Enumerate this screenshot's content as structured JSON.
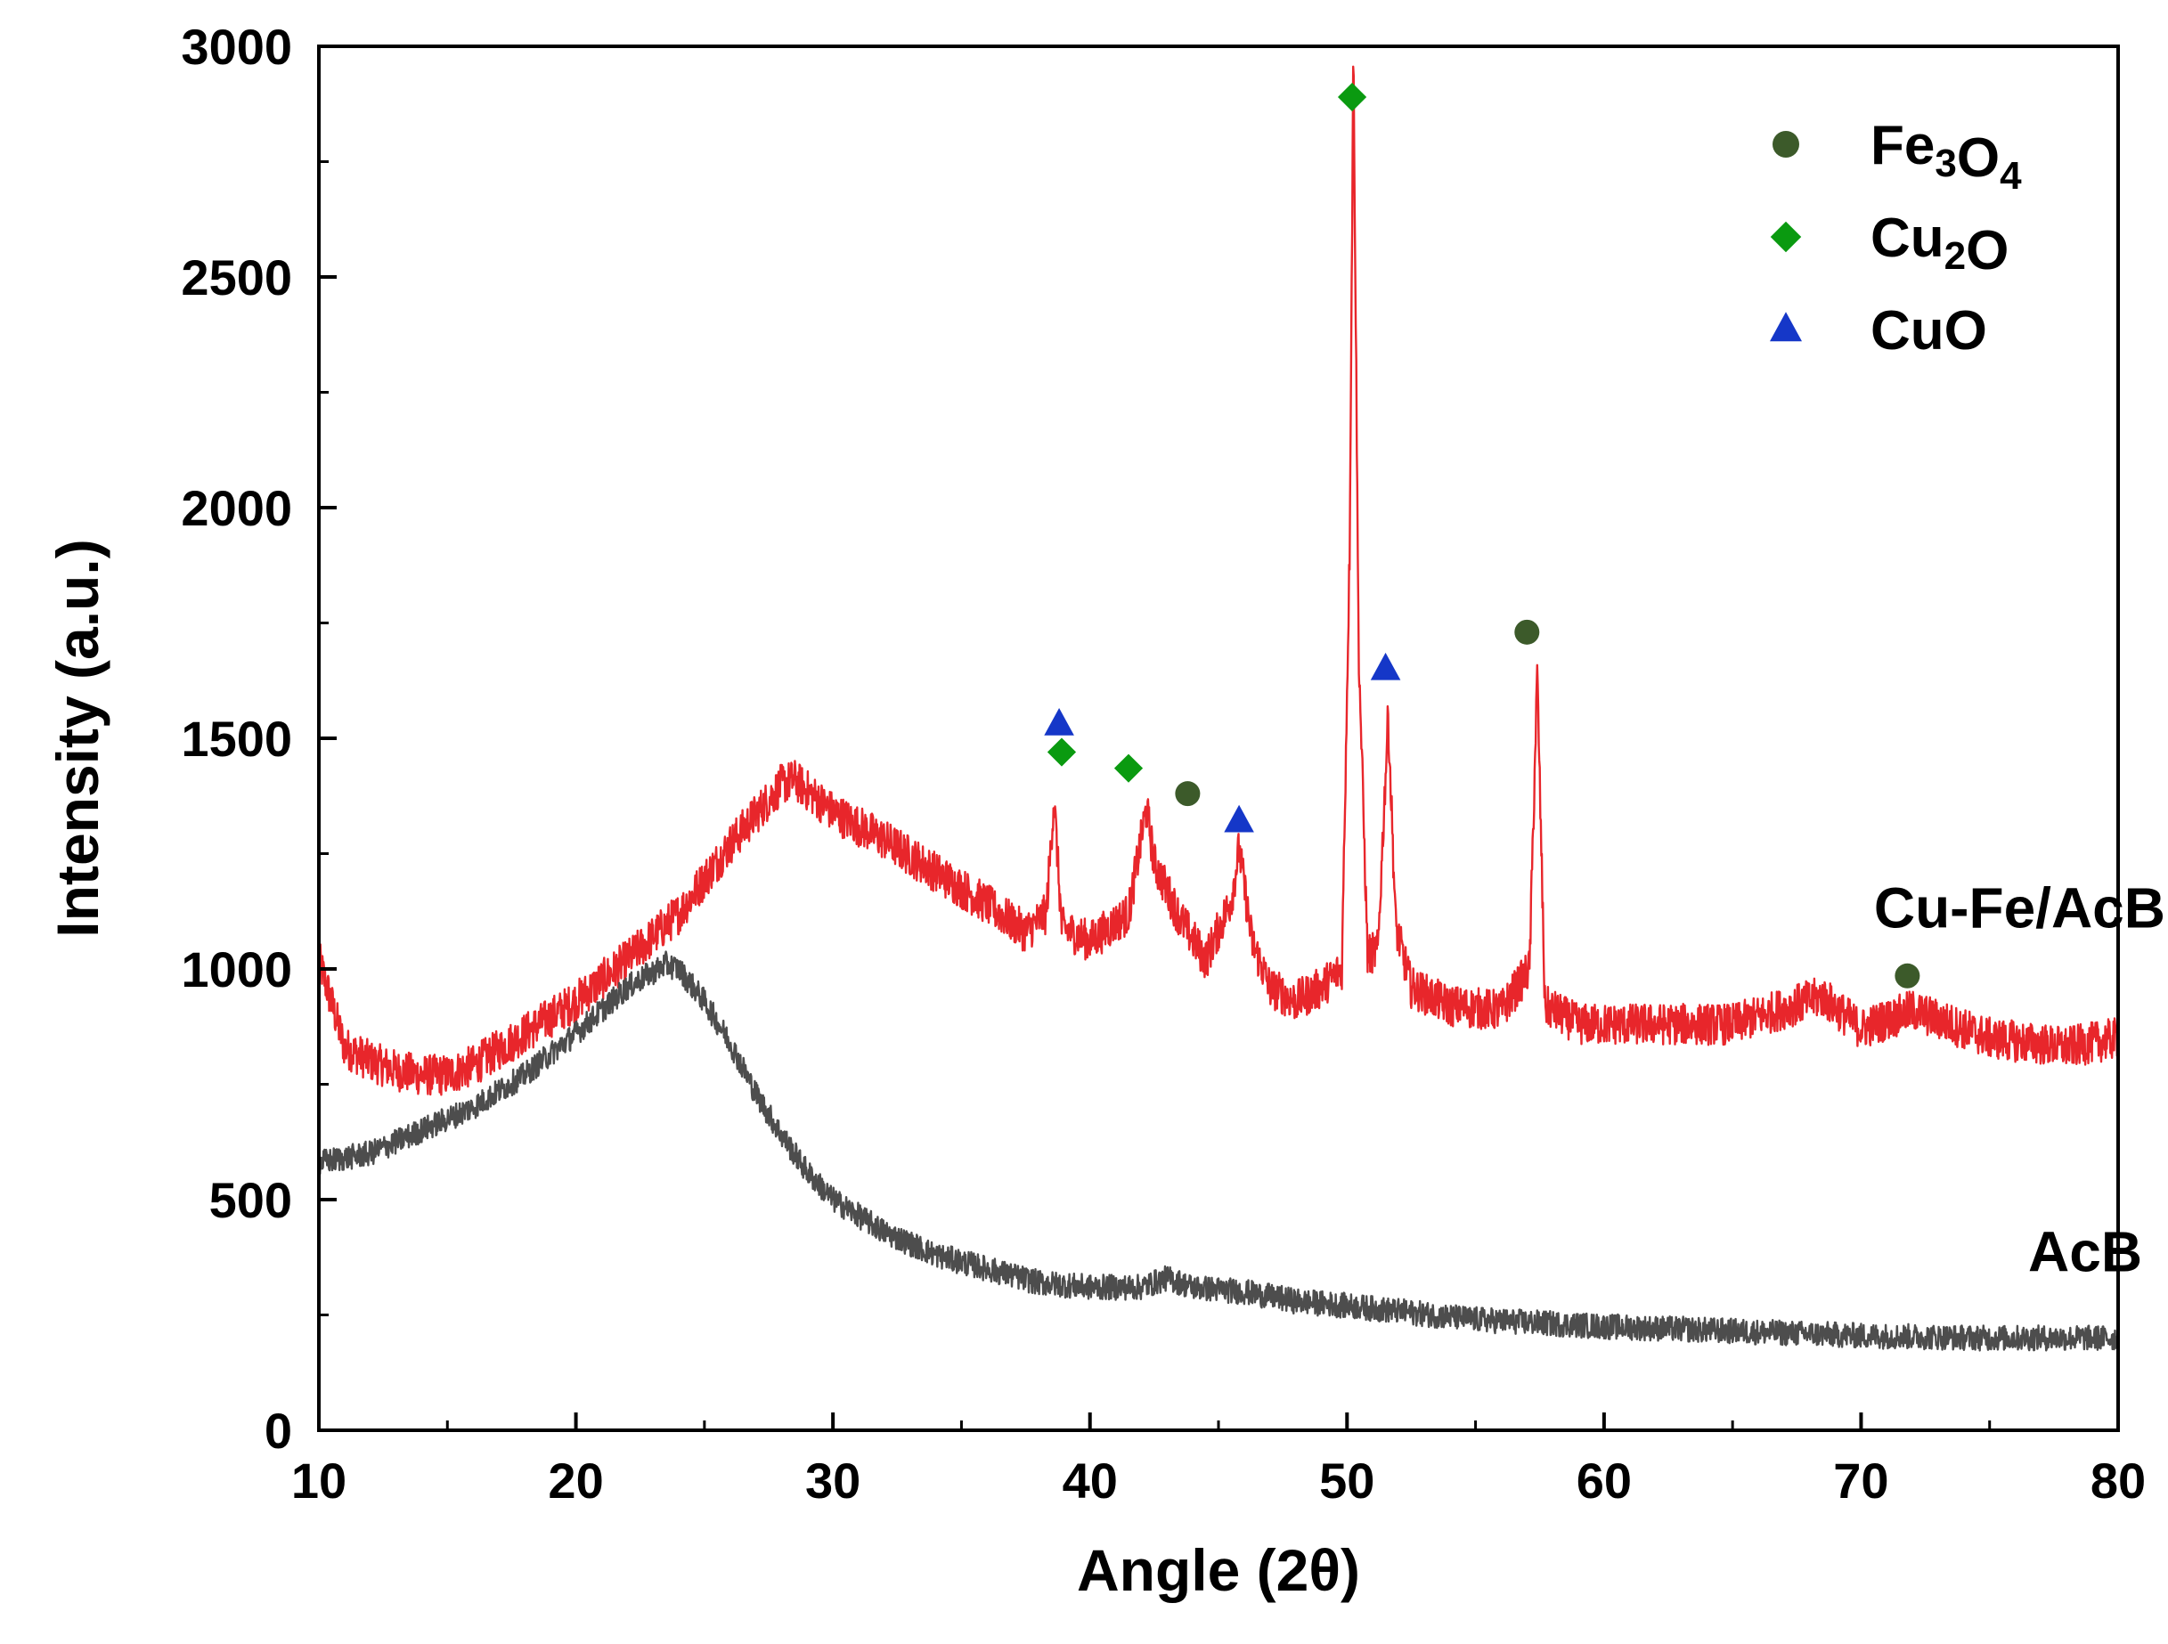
{
  "chart_data": {
    "type": "line",
    "title": "",
    "xlabel": "Angle (2θ)",
    "ylabel": "Intensity (a.u.)",
    "xlim": [
      10,
      80
    ],
    "ylim": [
      0,
      3000
    ],
    "xticks": [
      10,
      20,
      30,
      40,
      50,
      60,
      70,
      80
    ],
    "yticks": [
      0,
      500,
      1000,
      1500,
      2000,
      2500,
      3000
    ],
    "xtick_labels": [
      "10",
      "20",
      "30",
      "40",
      "50",
      "60",
      "70",
      "80"
    ],
    "ytick_labels": [
      "0",
      "500",
      "1000",
      "1500",
      "2000",
      "2500",
      "3000"
    ],
    "series": [
      {
        "name": "Cu-Fe/AcB",
        "color": "#e8262b",
        "x": [
          10,
          11,
          12,
          13,
          14,
          15,
          16,
          18,
          20,
          22,
          24,
          26,
          28,
          28.5,
          30,
          32,
          34,
          36,
          37.5,
          38.3,
          38.6,
          38.9,
          40,
          41.5,
          42.2,
          42.5,
          43.5,
          44.5,
          45.5,
          45.8,
          46.3,
          47,
          48,
          49,
          49.8,
          50.1,
          50.25,
          50.45,
          50.8,
          51.2,
          51.6,
          51.9,
          52.5,
          54,
          56,
          57.1,
          57.4,
          57.7,
          59,
          62,
          65,
          68.5,
          70,
          72,
          75,
          78,
          80
        ],
        "y": [
          1020,
          830,
          800,
          780,
          770,
          770,
          790,
          860,
          930,
          1020,
          1120,
          1270,
          1400,
          1410,
          1340,
          1280,
          1210,
          1140,
          1080,
          1120,
          1370,
          1090,
          1060,
          1120,
          1350,
          1230,
          1110,
          1020,
          1150,
          1260,
          1060,
          960,
          930,
          960,
          1000,
          1900,
          3000,
          1700,
          1030,
          1040,
          1550,
          1090,
          960,
          920,
          910,
          1000,
          1640,
          920,
          880,
          880,
          880,
          940,
          870,
          910,
          850,
          830,
          850
        ]
      },
      {
        "name": "AcB",
        "color": "#4d4d4d",
        "x": [
          10,
          12,
          14,
          16,
          18,
          20,
          22,
          23.5,
          24,
          25,
          26,
          27,
          28,
          29,
          30,
          32,
          34,
          36,
          38,
          40,
          42,
          43,
          44,
          46,
          48,
          50,
          55,
          60,
          65,
          70,
          75,
          80
        ],
        "y": [
          580,
          600,
          650,
          700,
          770,
          860,
          960,
          1010,
          1000,
          930,
          840,
          730,
          640,
          560,
          500,
          430,
          380,
          350,
          320,
          310,
          310,
          330,
          310,
          300,
          280,
          270,
          240,
          225,
          215,
          205,
          200,
          200
        ]
      }
    ],
    "series_labels": [
      {
        "text": "Cu-Fe/AcB",
        "x": 70.5,
        "y": 1090
      },
      {
        "text": "AcB",
        "x": 76.5,
        "y": 345
      }
    ],
    "legend": {
      "position": "top-right",
      "entries": [
        {
          "label": "Fe",
          "sub1": "3",
          "mid": "O",
          "sub2": "4",
          "marker": "circle",
          "color": "#3c5a2a"
        },
        {
          "label": "Cu",
          "sub1": "2",
          "mid": "O",
          "sub2": "",
          "marker": "diamond",
          "color": "#0a9a10"
        },
        {
          "label": "CuO",
          "sub1": "",
          "mid": "",
          "sub2": "",
          "marker": "triangle",
          "color": "#1537c8"
        }
      ]
    },
    "annotations": [
      {
        "phase": "CuO",
        "marker": "triangle",
        "color": "#1537c8",
        "x": 38.8,
        "y": 1530
      },
      {
        "phase": "Cu2O",
        "marker": "diamond",
        "color": "#0a9a10",
        "x": 38.9,
        "y": 1470
      },
      {
        "phase": "Cu2O",
        "marker": "diamond",
        "color": "#0a9a10",
        "x": 41.5,
        "y": 1435
      },
      {
        "phase": "Fe3O4",
        "marker": "circle",
        "color": "#3c5a2a",
        "x": 43.8,
        "y": 1380
      },
      {
        "phase": "CuO",
        "marker": "triangle",
        "color": "#1537c8",
        "x": 45.8,
        "y": 1320
      },
      {
        "phase": "Cu2O",
        "marker": "diamond",
        "color": "#0a9a10",
        "x": 50.2,
        "y": 2890
      },
      {
        "phase": "CuO",
        "marker": "triangle",
        "color": "#1537c8",
        "x": 51.5,
        "y": 1650
      },
      {
        "phase": "Fe3O4",
        "marker": "circle",
        "color": "#3c5a2a",
        "x": 57.0,
        "y": 1730
      },
      {
        "phase": "Fe3O4",
        "marker": "circle",
        "color": "#3c5a2a",
        "x": 71.8,
        "y": 985
      }
    ]
  }
}
